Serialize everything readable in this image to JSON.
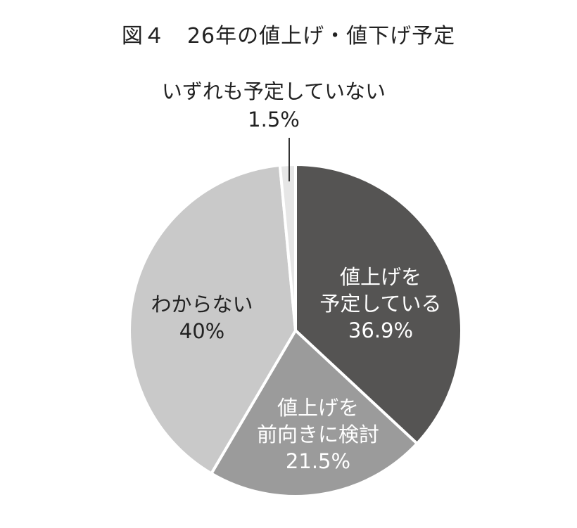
{
  "chart_data": {
    "type": "pie",
    "title": "図４　26年の値上げ・値下げ予定",
    "slices": [
      {
        "label": [
          "値上げを",
          "予定している"
        ],
        "value_label": "36.9%",
        "value": 36.9,
        "color": "#555453",
        "text_color": "#ffffff"
      },
      {
        "label": [
          "値上げを",
          "前向きに検討"
        ],
        "value_label": "21.5%",
        "value": 21.5,
        "color": "#9b9b9b",
        "text_color": "#ffffff"
      },
      {
        "label": [
          "わからない"
        ],
        "value_label": "40%",
        "value": 40.0,
        "color": "#c9c9c9",
        "text_color": "#222222"
      },
      {
        "label": [
          "いずれも予定していない"
        ],
        "value_label": "1.5%",
        "value": 1.5,
        "color": "#e6e6e6",
        "text_color": "#222222"
      }
    ]
  }
}
